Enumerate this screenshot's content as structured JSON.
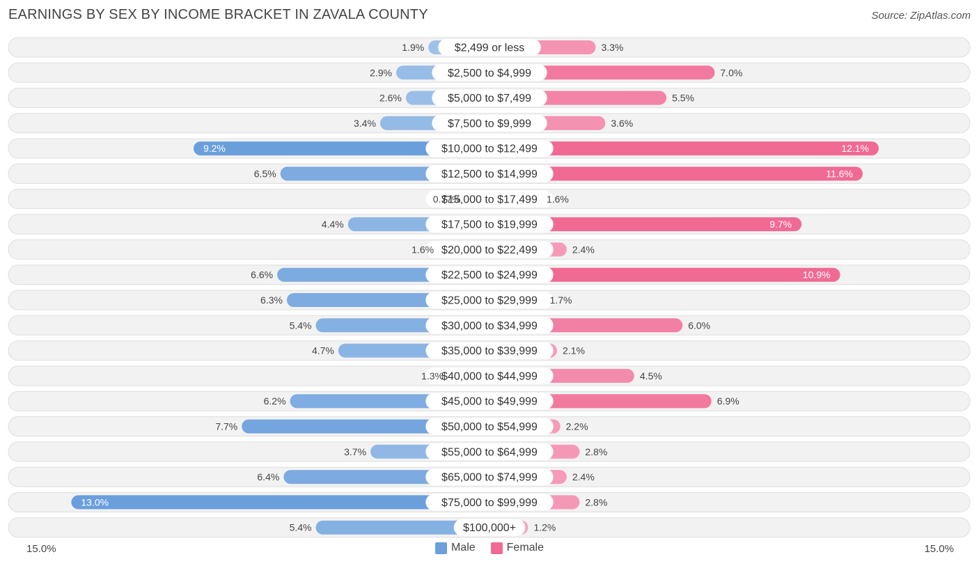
{
  "title": "EARNINGS BY SEX BY INCOME BRACKET IN ZAVALA COUNTY",
  "source": "Source: ZipAtlas.com",
  "chart_data": {
    "type": "bar",
    "orientation": "horizontal-diverging",
    "xlim": [
      -15,
      15
    ],
    "axis_left_label": "15.0%",
    "axis_right_label": "15.0%",
    "legend": [
      {
        "name": "Male",
        "color": "#6a9fdc"
      },
      {
        "name": "Female",
        "color": "#f06a94"
      }
    ],
    "categories": [
      "$2,499 or less",
      "$2,500 to $4,999",
      "$5,000 to $7,499",
      "$7,500 to $9,999",
      "$10,000 to $12,499",
      "$12,500 to $14,999",
      "$15,000 to $17,499",
      "$17,500 to $19,999",
      "$20,000 to $22,499",
      "$22,500 to $24,999",
      "$25,000 to $29,999",
      "$30,000 to $34,999",
      "$35,000 to $39,999",
      "$40,000 to $44,999",
      "$45,000 to $49,999",
      "$50,000 to $54,999",
      "$55,000 to $64,999",
      "$65,000 to $74,999",
      "$75,000 to $99,999",
      "$100,000+"
    ],
    "series": [
      {
        "name": "Male",
        "values": [
          1.9,
          2.9,
          2.6,
          3.4,
          9.2,
          6.5,
          0.77,
          4.4,
          1.6,
          6.6,
          6.3,
          5.4,
          4.7,
          1.3,
          6.2,
          7.7,
          3.7,
          6.4,
          13.0,
          5.4
        ],
        "labels": [
          "1.9%",
          "2.9%",
          "2.6%",
          "3.4%",
          "9.2%",
          "6.5%",
          "0.77%",
          "4.4%",
          "1.6%",
          "6.6%",
          "6.3%",
          "5.4%",
          "4.7%",
          "1.3%",
          "6.2%",
          "7.7%",
          "3.7%",
          "6.4%",
          "13.0%",
          "5.4%"
        ]
      },
      {
        "name": "Female",
        "values": [
          3.3,
          7.0,
          5.5,
          3.6,
          12.1,
          11.6,
          1.6,
          9.7,
          2.4,
          10.9,
          1.7,
          6.0,
          2.1,
          4.5,
          6.9,
          2.2,
          2.8,
          2.4,
          2.8,
          1.2
        ],
        "labels": [
          "3.3%",
          "7.0%",
          "5.5%",
          "3.6%",
          "12.1%",
          "11.6%",
          "1.6%",
          "9.7%",
          "2.4%",
          "10.9%",
          "1.7%",
          "6.0%",
          "2.1%",
          "4.5%",
          "6.9%",
          "2.2%",
          "2.8%",
          "2.4%",
          "2.8%",
          "1.2%"
        ]
      }
    ]
  }
}
